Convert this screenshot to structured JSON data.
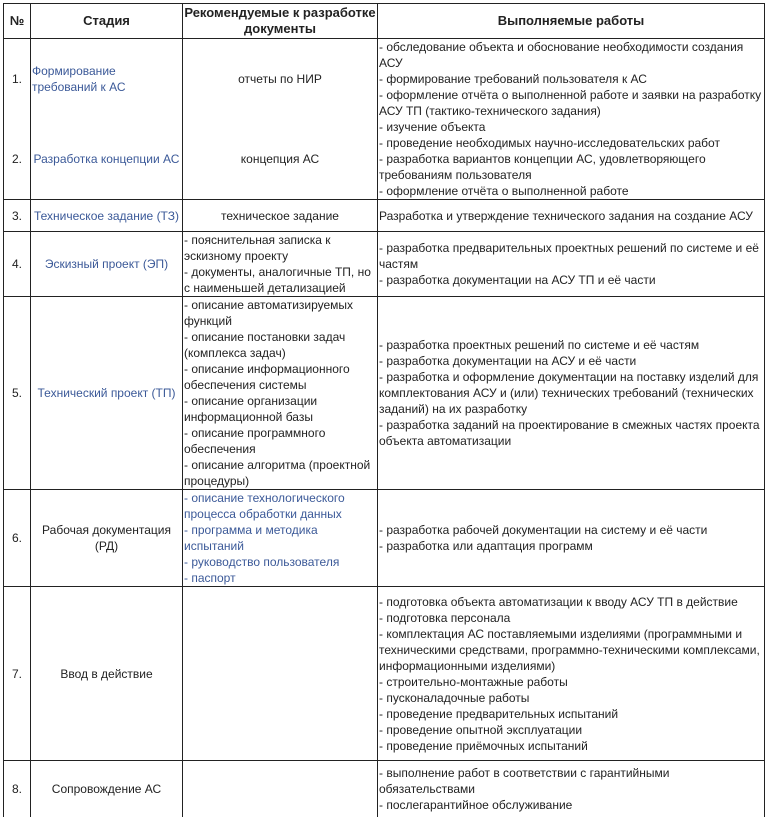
{
  "link_color": "#3b5998",
  "headers": {
    "num": "№",
    "stage": "Стадия",
    "docs": "Рекомендуемые к разработке документы",
    "works": "Выполняемые работы"
  },
  "rows": [
    {
      "num": "1.",
      "stage": "Формирование требований к АС",
      "stage_link": true,
      "docs": [
        "отчеты по НИР"
      ],
      "docs_center": true,
      "docs_link": false,
      "works": [
        "- обследование объекта и обоснование необходимости создания АСУ",
        "- формирование требований пользователя к АС",
        "- оформление отчёта о выполненной работе и заявки на разработку АСУ ТП (тактико-технического задания)"
      ]
    },
    {
      "num": "2.",
      "stage": "Разработка концепции АС",
      "stage_link": true,
      "docs": [
        "концепция АС"
      ],
      "docs_center": true,
      "docs_link": false,
      "works": [
        "- изучение объекта",
        "- проведение необходимых научно-исследовательских работ",
        "- разработка вариантов концепции АС, удовлетворяющего требованиям пользователя",
        "- оформление отчёта о выполненной работе"
      ]
    },
    {
      "num": "3.",
      "stage": "Техническое задание (ТЗ)",
      "stage_link": true,
      "docs": [
        "техническое задание"
      ],
      "docs_center": true,
      "docs_link": false,
      "works": [
        "Разработка и утверждение технического задания на создание АСУ"
      ]
    },
    {
      "num": "4.",
      "stage": "Эскизный проект (ЭП)",
      "stage_link": true,
      "docs": [
        "- пояснительная записка к эскизному проекту",
        "- документы, аналогичные ТП, но с наименьшей детализацией"
      ],
      "docs_center": false,
      "docs_link": false,
      "works": [
        "- разработка предварительных проектных решений по системе и её частям",
        "- разработка документации на АСУ ТП и её части"
      ]
    },
    {
      "num": "5.",
      "stage": "Технический проект (ТП)",
      "stage_link": true,
      "docs": [
        "- описание автоматизируемых функций",
        "- описание постановки задач (комплекса задач)",
        "- описание информационного обеспечения системы",
        "- описание организации информационной базы",
        "- описание программного обеспечения",
        "- описание алгоритма (проектной процедуры)"
      ],
      "docs_center": false,
      "docs_link": false,
      "works": [
        "- разработка проектных решений по системе и её частям",
        "- разработка документации на АСУ и её части",
        "- разработка и оформление документации на поставку изделий для комплектования АСУ и (или) технических требований (технических заданий) на их разработку",
        "- разработка заданий на проектирование в смежных частях проекта объекта автоматизации"
      ]
    },
    {
      "num": "6.",
      "stage": "Рабочая документация (РД)",
      "stage_link": false,
      "docs": [
        "- описание технологического процесса обработки данных",
        "- программа и методика испытаний",
        "- руководство пользователя",
        "- паспорт"
      ],
      "docs_center": false,
      "docs_link": true,
      "works": [
        "- разработка рабочей документации на систему и её части",
        "- разработка или адаптация программ"
      ]
    },
    {
      "num": "7.",
      "stage": "Ввод в действие",
      "stage_link": false,
      "docs": [],
      "docs_center": false,
      "docs_link": false,
      "works": [
        "- подготовка объекта автоматизации к вводу АСУ ТП в действие",
        "- подготовка персонала",
        "- комплектация АС поставляемыми изделиями (программными и техническими средствами, программно-техническими комплексами, информационными изделиями)",
        "- строительно-монтажные работы",
        "- пусконаладочные работы",
        "- проведение предварительных испытаний",
        "- проведение опытной эксплуатации",
        "- проведение приёмочных испытаний"
      ]
    },
    {
      "num": "8.",
      "stage": "Сопровождение АС",
      "stage_link": false,
      "docs": [],
      "docs_center": false,
      "docs_link": false,
      "works": [
        "- выполнение работ в соответствии с гарантийными обязательствами",
        "- послегарантийное обслуживание"
      ]
    }
  ]
}
